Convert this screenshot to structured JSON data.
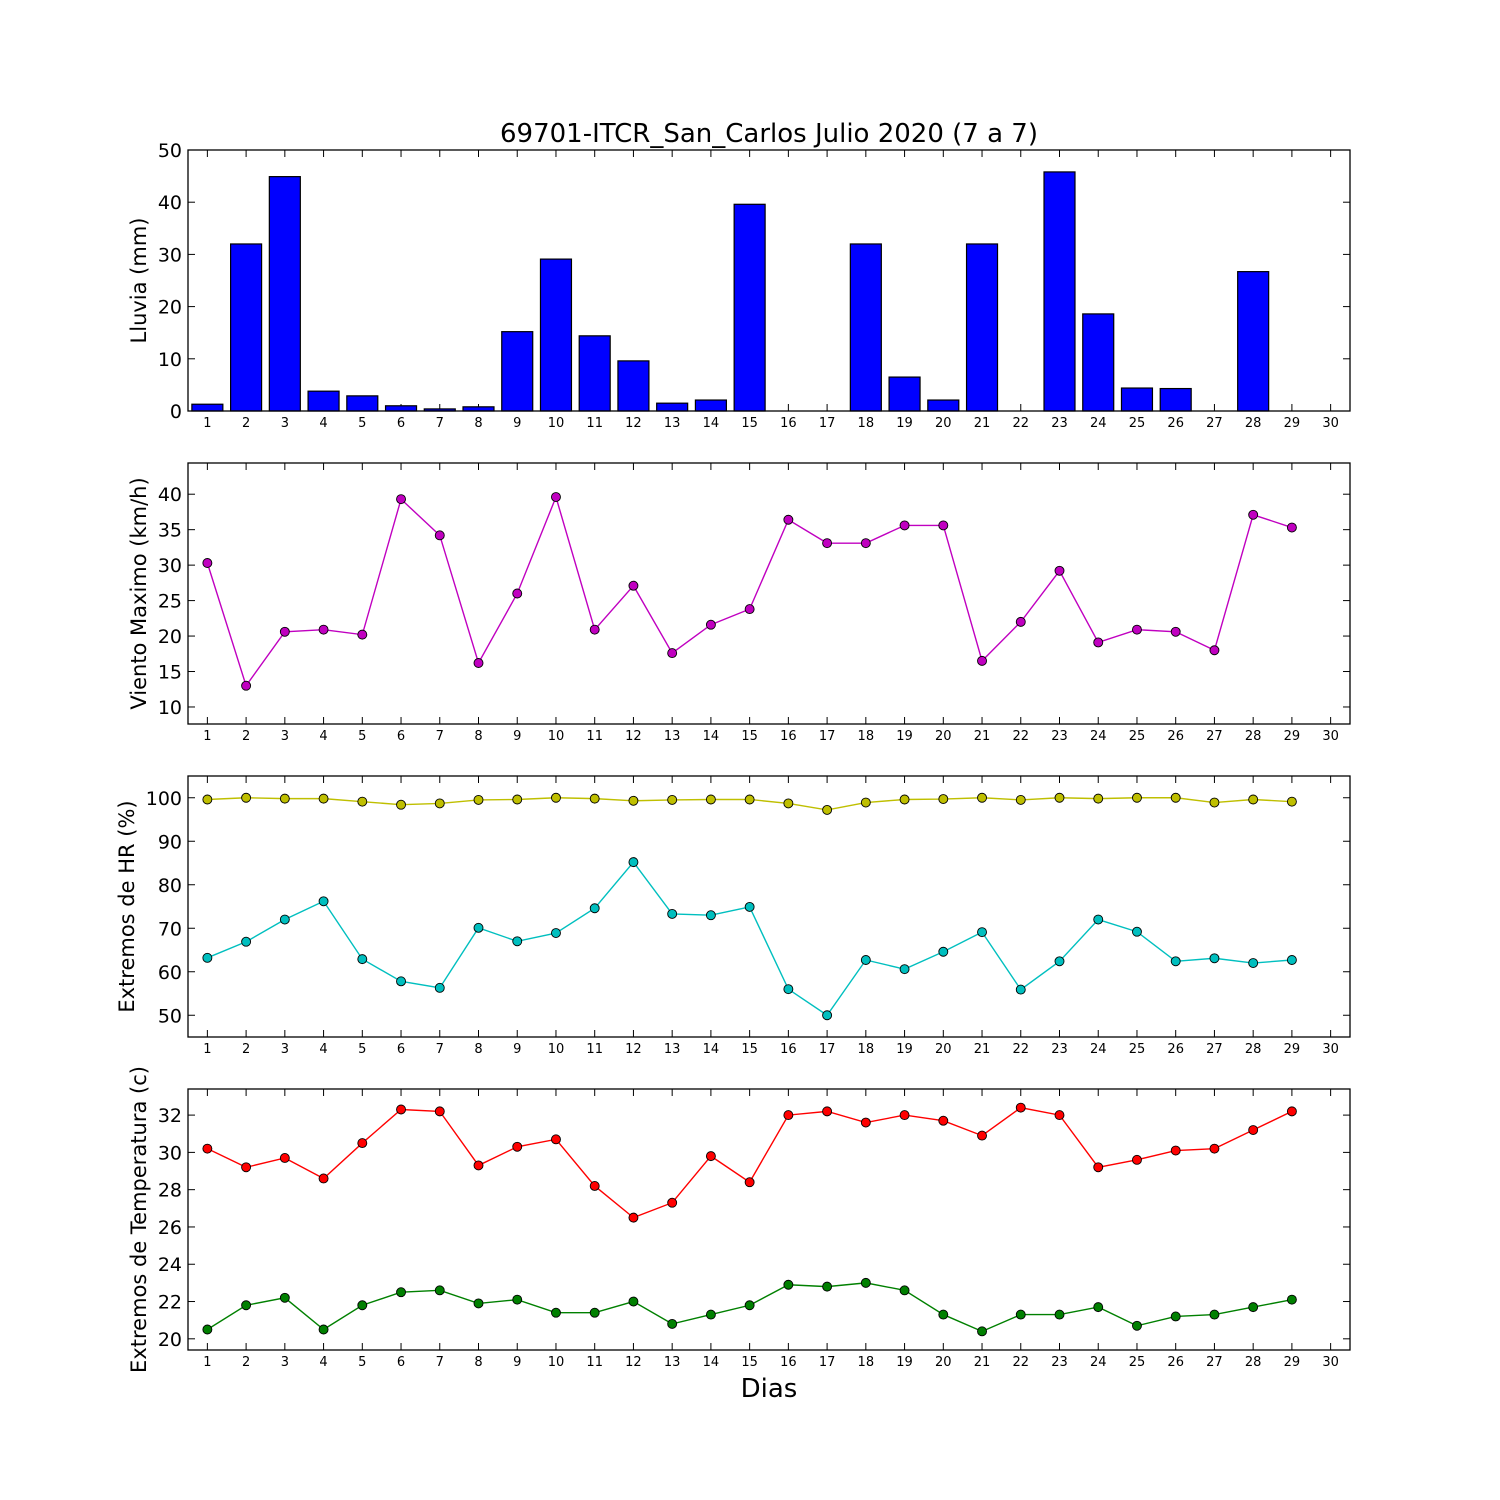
{
  "title": "69701-ITCR_San_Carlos Julio 2020  (7 a 7)",
  "xlabel": "Dias",
  "days": [
    1,
    2,
    3,
    4,
    5,
    6,
    7,
    8,
    9,
    10,
    11,
    12,
    13,
    14,
    15,
    16,
    17,
    18,
    19,
    20,
    21,
    22,
    23,
    24,
    25,
    26,
    27,
    28,
    29,
    30
  ],
  "chart_data": [
    {
      "type": "bar",
      "ylabel": "Lluvia (mm)",
      "ylim": [
        0,
        50
      ],
      "yticks": [
        0,
        10,
        20,
        30,
        40,
        50
      ],
      "xlim": [
        0.5,
        30.5
      ],
      "grid": false,
      "series": [
        {
          "color": "#0000ff",
          "x": [
            1,
            2,
            3,
            4,
            5,
            6,
            7,
            8,
            9,
            10,
            11,
            12,
            13,
            14,
            15,
            16,
            17,
            18,
            19,
            20,
            21,
            22,
            23,
            24,
            25,
            26,
            27,
            28,
            29
          ],
          "values": [
            1.3,
            32.0,
            44.9,
            3.8,
            2.9,
            1.0,
            0.4,
            0.8,
            15.2,
            29.1,
            14.4,
            9.6,
            1.5,
            2.1,
            39.6,
            0.0,
            0.0,
            32.0,
            6.5,
            2.1,
            32.0,
            0.0,
            45.8,
            18.6,
            4.4,
            4.3,
            0.0,
            26.7,
            0.0
          ]
        }
      ]
    },
    {
      "type": "line",
      "ylabel": "Viento Maximo (km/h)",
      "ylim": [
        7.6,
        44.4
      ],
      "yticks": [
        10,
        15,
        20,
        25,
        30,
        35,
        40
      ],
      "xlim": [
        0.5,
        30.5
      ],
      "grid": false,
      "series": [
        {
          "color": "#c000c0",
          "x": [
            1,
            2,
            3,
            4,
            5,
            6,
            7,
            8,
            9,
            10,
            11,
            12,
            13,
            14,
            15,
            16,
            17,
            18,
            19,
            20,
            21,
            22,
            23,
            24,
            25,
            26,
            27,
            28,
            29
          ],
          "values": [
            30.3,
            13.0,
            20.6,
            20.9,
            20.2,
            39.3,
            34.2,
            16.2,
            26.0,
            39.6,
            20.9,
            27.1,
            17.6,
            21.6,
            23.8,
            36.4,
            33.1,
            33.1,
            35.6,
            35.6,
            16.5,
            22.0,
            29.2,
            19.1,
            20.9,
            20.6,
            18.0,
            37.1,
            35.3
          ]
        }
      ]
    },
    {
      "type": "line",
      "ylabel": "Extremos de HR (%)",
      "ylim": [
        45,
        105
      ],
      "yticks": [
        50,
        60,
        70,
        80,
        90,
        100
      ],
      "xlim": [
        0.5,
        30.5
      ],
      "grid": false,
      "series": [
        {
          "color": "#bfbf00",
          "x": [
            1,
            2,
            3,
            4,
            5,
            6,
            7,
            8,
            9,
            10,
            11,
            12,
            13,
            14,
            15,
            16,
            17,
            18,
            19,
            20,
            21,
            22,
            23,
            24,
            25,
            26,
            27,
            28,
            29
          ],
          "values": [
            99.6,
            100.0,
            99.8,
            99.8,
            99.1,
            98.4,
            98.7,
            99.5,
            99.6,
            100.0,
            99.8,
            99.3,
            99.5,
            99.6,
            99.6,
            98.7,
            97.2,
            98.9,
            99.6,
            99.7,
            100.0,
            99.5,
            100.0,
            99.8,
            100.0,
            100.0,
            98.9,
            99.6,
            99.1
          ]
        },
        {
          "color": "#00bfbf",
          "x": [
            1,
            2,
            3,
            4,
            5,
            6,
            7,
            8,
            9,
            10,
            11,
            12,
            13,
            14,
            15,
            16,
            17,
            18,
            19,
            20,
            21,
            22,
            23,
            24,
            25,
            26,
            27,
            28,
            29
          ],
          "values": [
            63.2,
            66.9,
            72.0,
            76.2,
            62.9,
            57.8,
            56.3,
            70.1,
            67.0,
            68.9,
            74.6,
            85.2,
            73.3,
            73.0,
            74.9,
            56.0,
            50.0,
            62.7,
            60.6,
            64.6,
            69.1,
            55.9,
            62.4,
            72.0,
            69.2,
            62.4,
            63.1,
            62.0,
            62.7
          ]
        }
      ]
    },
    {
      "type": "line",
      "ylabel": "Extremos de Temperatura (c)",
      "ylim": [
        19.4,
        33.4
      ],
      "yticks": [
        20,
        22,
        24,
        26,
        28,
        30,
        32
      ],
      "xlim": [
        0.5,
        30.5
      ],
      "grid": false,
      "series": [
        {
          "color": "#ff0000",
          "x": [
            1,
            2,
            3,
            4,
            5,
            6,
            7,
            8,
            9,
            10,
            11,
            12,
            13,
            14,
            15,
            16,
            17,
            18,
            19,
            20,
            21,
            22,
            23,
            24,
            25,
            26,
            27,
            28,
            29
          ],
          "values": [
            30.2,
            29.2,
            29.7,
            28.6,
            30.5,
            32.3,
            32.2,
            29.3,
            30.3,
            30.7,
            28.2,
            26.5,
            27.3,
            29.8,
            28.4,
            32.0,
            32.2,
            31.6,
            32.0,
            31.7,
            30.9,
            32.4,
            32.0,
            29.2,
            29.6,
            30.1,
            30.2,
            31.2,
            32.2
          ]
        },
        {
          "color": "#008000",
          "x": [
            1,
            2,
            3,
            4,
            5,
            6,
            7,
            8,
            9,
            10,
            11,
            12,
            13,
            14,
            15,
            16,
            17,
            18,
            19,
            20,
            21,
            22,
            23,
            24,
            25,
            26,
            27,
            28,
            29
          ],
          "values": [
            20.5,
            21.8,
            22.2,
            20.5,
            21.8,
            22.5,
            22.6,
            21.9,
            22.1,
            21.4,
            21.4,
            22.0,
            20.8,
            21.3,
            21.8,
            22.9,
            22.8,
            23.0,
            22.6,
            21.3,
            20.4,
            21.3,
            21.3,
            21.7,
            20.7,
            21.2,
            21.3,
            21.7,
            22.1
          ]
        }
      ]
    }
  ]
}
